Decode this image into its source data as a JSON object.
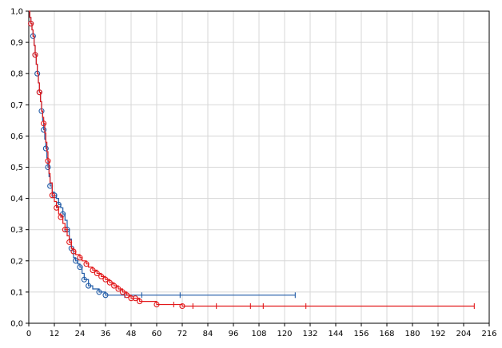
{
  "chart_data": {
    "type": "line",
    "title": "",
    "xlabel": "",
    "ylabel": "",
    "xlim": [
      0,
      216
    ],
    "ylim": [
      0,
      1
    ],
    "grid": true,
    "x_ticks": [
      "0",
      "12",
      "24",
      "36",
      "48",
      "60",
      "72",
      "84",
      "96",
      "108",
      "120",
      "132",
      "144",
      "156",
      "168",
      "180",
      "192",
      "204",
      "216"
    ],
    "y_ticks": [
      "0,0",
      "0,1",
      "0,2",
      "0,3",
      "0,4",
      "0,5",
      "0,6",
      "0,7",
      "0,8",
      "0,9",
      "1,0"
    ],
    "series": [
      {
        "color": "#1f5aa6",
        "step_points": [
          [
            0,
            1.0
          ],
          [
            0.5,
            0.98
          ],
          [
            1,
            0.96
          ],
          [
            1.5,
            0.94
          ],
          [
            2,
            0.92
          ],
          [
            2.5,
            0.89
          ],
          [
            3,
            0.86
          ],
          [
            3.5,
            0.83
          ],
          [
            4,
            0.8
          ],
          [
            4.5,
            0.77
          ],
          [
            5,
            0.74
          ],
          [
            5.5,
            0.71
          ],
          [
            6,
            0.68
          ],
          [
            6.5,
            0.65
          ],
          [
            7,
            0.62
          ],
          [
            7.5,
            0.59
          ],
          [
            8,
            0.56
          ],
          [
            8.5,
            0.53
          ],
          [
            9,
            0.5
          ],
          [
            9.5,
            0.47
          ],
          [
            10,
            0.44
          ],
          [
            11,
            0.42
          ],
          [
            12,
            0.41
          ],
          [
            13,
            0.4
          ],
          [
            14,
            0.38
          ],
          [
            15,
            0.37
          ],
          [
            16,
            0.35
          ],
          [
            17,
            0.33
          ],
          [
            18,
            0.3
          ],
          [
            19,
            0.27
          ],
          [
            20,
            0.24
          ],
          [
            21,
            0.21
          ],
          [
            22,
            0.2
          ],
          [
            23,
            0.19
          ],
          [
            24,
            0.18
          ],
          [
            25,
            0.16
          ],
          [
            26,
            0.14
          ],
          [
            28,
            0.12
          ],
          [
            30,
            0.11
          ],
          [
            33,
            0.1
          ],
          [
            36,
            0.09
          ],
          [
            45,
            0.09
          ],
          [
            125,
            0.09
          ]
        ],
        "circles": [
          [
            1,
            0.96
          ],
          [
            2,
            0.92
          ],
          [
            3,
            0.86
          ],
          [
            4,
            0.8
          ],
          [
            5,
            0.74
          ],
          [
            6,
            0.68
          ],
          [
            7,
            0.62
          ],
          [
            8,
            0.56
          ],
          [
            9,
            0.5
          ],
          [
            10,
            0.44
          ],
          [
            12,
            0.41
          ],
          [
            14,
            0.38
          ],
          [
            16,
            0.35
          ],
          [
            18,
            0.3
          ],
          [
            20,
            0.24
          ],
          [
            22,
            0.2
          ],
          [
            24,
            0.18
          ],
          [
            26,
            0.14
          ],
          [
            28,
            0.12
          ],
          [
            33,
            0.1
          ],
          [
            36,
            0.09
          ]
        ],
        "censored": [
          [
            45,
            0.09
          ],
          [
            53,
            0.09
          ],
          [
            71,
            0.09
          ],
          [
            125,
            0.09
          ]
        ]
      },
      {
        "color": "#e2191b",
        "step_points": [
          [
            0,
            1.0
          ],
          [
            0.5,
            0.98
          ],
          [
            1,
            0.96
          ],
          [
            1.5,
            0.94
          ],
          [
            2,
            0.92
          ],
          [
            2.5,
            0.89
          ],
          [
            3,
            0.86
          ],
          [
            3.5,
            0.83
          ],
          [
            4,
            0.8
          ],
          [
            4.5,
            0.77
          ],
          [
            5,
            0.74
          ],
          [
            5.5,
            0.71
          ],
          [
            6,
            0.68
          ],
          [
            6.5,
            0.66
          ],
          [
            7,
            0.64
          ],
          [
            7.5,
            0.61
          ],
          [
            8,
            0.58
          ],
          [
            8.5,
            0.55
          ],
          [
            9,
            0.52
          ],
          [
            9.5,
            0.48
          ],
          [
            10,
            0.45
          ],
          [
            11,
            0.41
          ],
          [
            12,
            0.39
          ],
          [
            13,
            0.37
          ],
          [
            14,
            0.35
          ],
          [
            15,
            0.34
          ],
          [
            16,
            0.32
          ],
          [
            17,
            0.3
          ],
          [
            18,
            0.28
          ],
          [
            19,
            0.26
          ],
          [
            20,
            0.24
          ],
          [
            21,
            0.23
          ],
          [
            22,
            0.22
          ],
          [
            24,
            0.21
          ],
          [
            25,
            0.2
          ],
          [
            27,
            0.19
          ],
          [
            28,
            0.18
          ],
          [
            30,
            0.17
          ],
          [
            32,
            0.16
          ],
          [
            34,
            0.15
          ],
          [
            36,
            0.14
          ],
          [
            38,
            0.13
          ],
          [
            40,
            0.12
          ],
          [
            42,
            0.11
          ],
          [
            44,
            0.1
          ],
          [
            46,
            0.09
          ],
          [
            48,
            0.08
          ],
          [
            50,
            0.08
          ],
          [
            52,
            0.07
          ],
          [
            54,
            0.07
          ],
          [
            60,
            0.06
          ],
          [
            68,
            0.06
          ],
          [
            72,
            0.055
          ],
          [
            209,
            0.055
          ]
        ],
        "circles": [
          [
            1,
            0.96
          ],
          [
            3,
            0.86
          ],
          [
            5,
            0.74
          ],
          [
            7,
            0.64
          ],
          [
            9,
            0.52
          ],
          [
            11,
            0.41
          ],
          [
            13,
            0.37
          ],
          [
            15,
            0.34
          ],
          [
            17,
            0.3
          ],
          [
            19,
            0.26
          ],
          [
            21,
            0.23
          ],
          [
            24,
            0.21
          ],
          [
            27,
            0.19
          ],
          [
            30,
            0.17
          ],
          [
            32,
            0.16
          ],
          [
            34,
            0.15
          ],
          [
            36,
            0.14
          ],
          [
            38,
            0.13
          ],
          [
            40,
            0.12
          ],
          [
            42,
            0.11
          ],
          [
            44,
            0.1
          ],
          [
            46,
            0.09
          ],
          [
            48,
            0.08
          ],
          [
            50,
            0.08
          ],
          [
            52,
            0.07
          ],
          [
            60,
            0.06
          ],
          [
            72,
            0.055
          ]
        ],
        "censored": [
          [
            68,
            0.06
          ],
          [
            77,
            0.055
          ],
          [
            88,
            0.055
          ],
          [
            104,
            0.055
          ],
          [
            110,
            0.055
          ],
          [
            130,
            0.055
          ],
          [
            209,
            0.055
          ]
        ]
      }
    ]
  }
}
